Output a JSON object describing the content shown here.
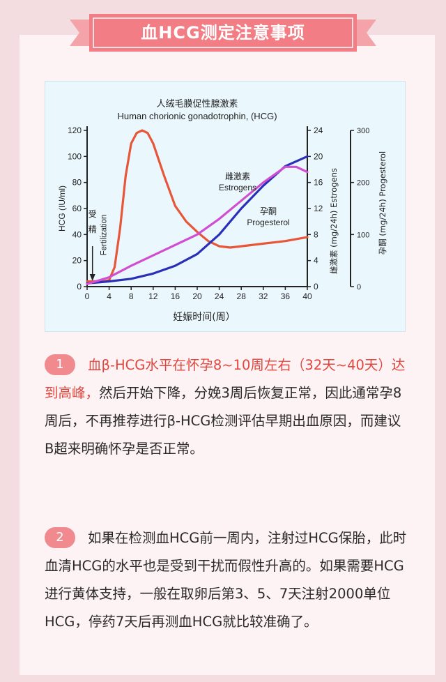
{
  "header": {
    "title": "血HCG测定注意事项"
  },
  "colors": {
    "banner": "#f27d84",
    "hcg": "#e8563a",
    "estrogen": "#2a2fb8",
    "progesterone": "#d04ed0"
  },
  "chart_data": {
    "type": "line",
    "title_cn": "人绒毛膜促性腺激素",
    "title_en": "Human chorionic gonadotrophin, (HCG)",
    "xlabel": "妊娠时间(周）",
    "xticks": [
      "0",
      "4",
      "8",
      "12",
      "16",
      "20",
      "24",
      "28",
      "32",
      "36",
      "40"
    ],
    "xlim": [
      0,
      40
    ],
    "y_left": {
      "label": "HCG (IU/ml)",
      "ticks": [
        "0",
        "20",
        "40",
        "60",
        "80",
        "100",
        "120"
      ],
      "lim": [
        0,
        120
      ]
    },
    "y_right1": {
      "label_cn": "雌激素",
      "label_en": "(mg/24h) Estrogens",
      "ticks": [
        "0",
        "4",
        "8",
        "12",
        "16",
        "20",
        "24"
      ],
      "lim": [
        0,
        24
      ]
    },
    "y_right2": {
      "label_cn": "孕酮",
      "label_en": "(mg/24h) Progesterol",
      "ticks": [
        "0",
        "100",
        "200",
        "300"
      ],
      "lim": [
        0,
        300
      ]
    },
    "annotation": {
      "cn": "受精",
      "en": "Fertilization",
      "x": 3
    },
    "series": [
      {
        "name": "HCG",
        "axis": "left",
        "x": [
          0,
          2.5,
          3,
          4,
          5,
          6,
          7,
          8,
          9,
          10,
          11,
          12,
          14,
          16,
          18,
          20,
          22,
          24,
          26,
          28,
          32,
          36,
          40
        ],
        "y": [
          4,
          4,
          4,
          5,
          15,
          45,
          85,
          110,
          118,
          120,
          118,
          110,
          85,
          62,
          50,
          42,
          35,
          31,
          30,
          31,
          33,
          35,
          38
        ]
      },
      {
        "name": "雌激素 Estrogens",
        "axis": "right1",
        "x": [
          0,
          4,
          8,
          12,
          16,
          20,
          24,
          28,
          32,
          36,
          40
        ],
        "y": [
          0.5,
          0.8,
          1.2,
          2,
          3.2,
          5,
          8,
          12,
          15.5,
          18.5,
          20
        ]
      },
      {
        "name": "孕酮 Progesterol",
        "axis": "right2",
        "x": [
          0,
          4,
          8,
          12,
          16,
          20,
          24,
          28,
          32,
          36,
          38,
          40
        ],
        "y": [
          5,
          18,
          40,
          60,
          80,
          100,
          130,
          165,
          200,
          230,
          230,
          220
        ]
      }
    ]
  },
  "section1": {
    "badge": "1",
    "highlight": "血β-HCG水平在怀孕8~10周左右（32天~40天）达到高峰，",
    "text": "然后开始下降，分娩3周后恢复正常，因此通常孕8周后，不再推荐进行β-HCG检测评估早期出血原因，而建议B超来明确怀孕是否正常。"
  },
  "section2": {
    "badge": "2",
    "text": "如果在检测血HCG前一周内，注射过HCG保胎，此时血清HCG的水平也是受到干扰而假性升高的。如果需要HCG进行黄体支持，一般在取卵后第3、5、7天注射2000单位HCG，停药7天后再测血HCG就比较准确了。"
  }
}
